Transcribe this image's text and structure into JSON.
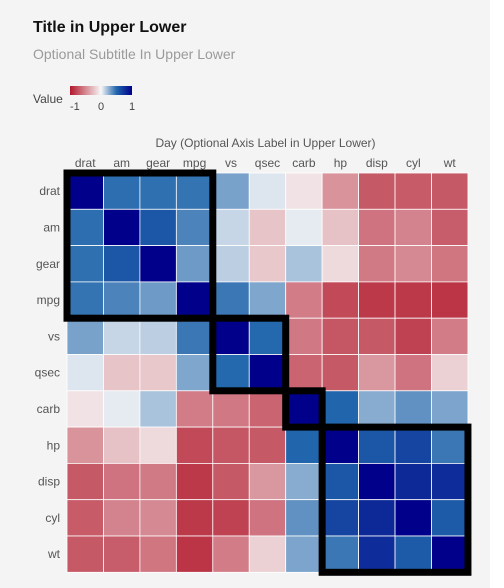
{
  "chart_data": {
    "type": "heatmap",
    "title": "Title in Upper Lower",
    "subtitle": "Optional Subtitle In Upper Lower",
    "xlabel": "Day (Optional Axis Label in Upper Lower)",
    "legend": {
      "title": "Value",
      "ticks": [
        "-1",
        "0",
        "1"
      ],
      "low_color": "#b2182b",
      "mid_color": "#f7f7f7",
      "high_color": "#2166ac",
      "extreme_high_color": "#00008b"
    },
    "x_categories": [
      "drat",
      "am",
      "gear",
      "mpg",
      "vs",
      "qsec",
      "carb",
      "hp",
      "disp",
      "cyl",
      "wt"
    ],
    "y_categories": [
      "drat",
      "am",
      "gear",
      "mpg",
      "vs",
      "qsec",
      "carb",
      "hp",
      "disp",
      "cyl",
      "wt"
    ],
    "values": [
      [
        1.0,
        0.71,
        0.7,
        0.68,
        0.44,
        0.09,
        -0.09,
        -0.45,
        -0.71,
        -0.7,
        -0.71
      ],
      [
        0.71,
        1.0,
        0.79,
        0.6,
        0.17,
        -0.23,
        0.06,
        -0.24,
        -0.59,
        -0.52,
        -0.69
      ],
      [
        0.7,
        0.79,
        1.0,
        0.48,
        0.21,
        -0.21,
        0.27,
        -0.13,
        -0.56,
        -0.49,
        -0.58
      ],
      [
        0.68,
        0.6,
        0.48,
        1.0,
        0.66,
        0.42,
        -0.55,
        -0.78,
        -0.85,
        -0.85,
        -0.87
      ],
      [
        0.44,
        0.17,
        0.21,
        0.66,
        1.0,
        0.74,
        -0.57,
        -0.72,
        -0.71,
        -0.81,
        -0.55
      ],
      [
        0.09,
        -0.23,
        -0.21,
        0.42,
        0.74,
        1.0,
        -0.66,
        -0.71,
        -0.43,
        -0.59,
        -0.17
      ],
      [
        -0.09,
        0.06,
        0.27,
        -0.55,
        -0.57,
        -0.66,
        1.0,
        0.75,
        0.39,
        0.53,
        0.43
      ],
      [
        -0.45,
        -0.24,
        -0.13,
        -0.78,
        -0.72,
        -0.71,
        0.75,
        1.0,
        0.79,
        0.83,
        0.66
      ],
      [
        -0.71,
        -0.59,
        -0.56,
        -0.85,
        -0.71,
        -0.43,
        0.39,
        0.79,
        1.0,
        0.9,
        0.89
      ],
      [
        -0.7,
        -0.52,
        -0.49,
        -0.85,
        -0.81,
        -0.59,
        0.53,
        0.83,
        0.9,
        1.0,
        0.78
      ],
      [
        -0.71,
        -0.69,
        -0.58,
        -0.87,
        -0.55,
        -0.17,
        0.43,
        0.66,
        0.89,
        0.78,
        1.0
      ]
    ],
    "clusters": [
      [
        "drat",
        "am",
        "gear",
        "mpg"
      ],
      [
        "vs",
        "qsec"
      ],
      [
        "carb"
      ],
      [
        "hp",
        "disp",
        "cyl",
        "wt"
      ]
    ],
    "grid": false,
    "legend_position": "top-left"
  }
}
